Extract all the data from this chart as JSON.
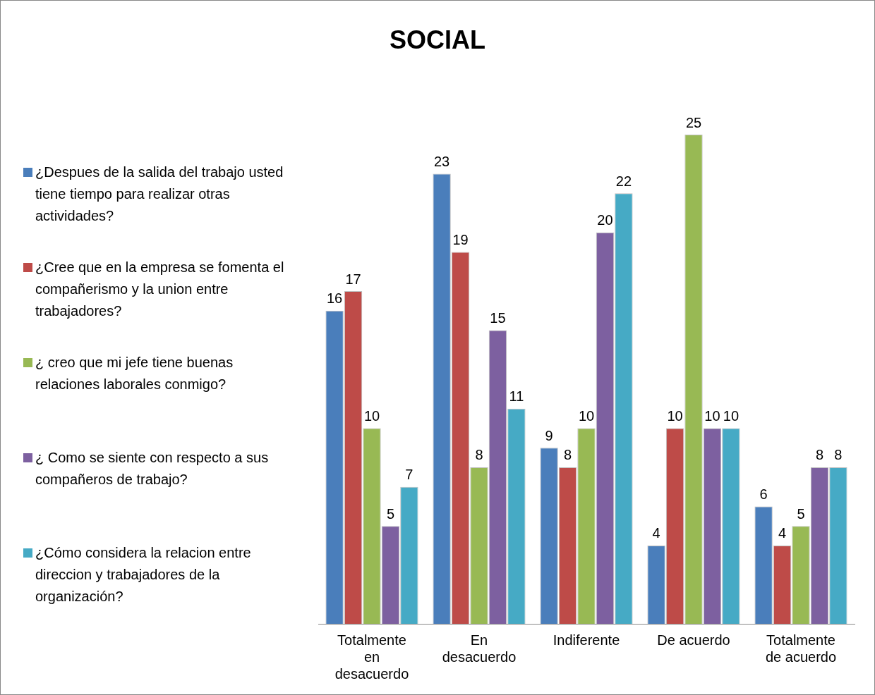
{
  "chart_data": {
    "type": "bar",
    "title": "SOCIAL",
    "categories": [
      "Totalmente en desacuerdo",
      "En desacuerdo",
      "Indiferente",
      "De acuerdo",
      "Totalmente de acuerdo"
    ],
    "series": [
      {
        "name": "¿Despues de la salida del trabajo usted tiene tiempo para realizar otras actividades?",
        "color": "#4a7ebb",
        "values": [
          16,
          23,
          9,
          4,
          6
        ]
      },
      {
        "name": "¿Cree que en la empresa se fomenta el compañerismo y la union entre trabajadores?",
        "color": "#be4b48",
        "values": [
          17,
          19,
          8,
          10,
          4
        ]
      },
      {
        "name": "¿ creo que mi jefe tiene buenas relaciones laborales conmigo?",
        "color": "#98b954",
        "values": [
          10,
          8,
          10,
          25,
          5
        ]
      },
      {
        "name": "¿ Como se siente con respecto a sus compañeros de trabajo?",
        "color": "#7d60a0",
        "values": [
          5,
          15,
          20,
          10,
          8
        ]
      },
      {
        "name": "¿Cómo considera la relacion entre direccion y trabajadores de la organización?",
        "color": "#46aac5",
        "values": [
          7,
          11,
          22,
          10,
          8
        ]
      }
    ],
    "data_labels": true,
    "legend": "left",
    "grid": false
  }
}
